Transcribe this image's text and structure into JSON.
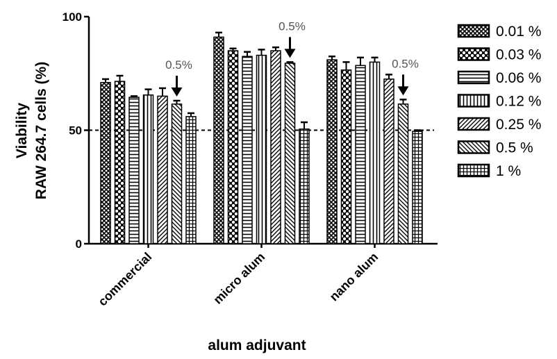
{
  "chart_data": {
    "type": "bar",
    "ylabel": [
      "Viability",
      "RAW 264.7 cells (%)"
    ],
    "xlabel": "alum adjuvant",
    "ylim": [
      0,
      100
    ],
    "yticks": [
      "0",
      "50",
      "100"
    ],
    "categories": [
      "commercial",
      "micro alum",
      "nano alum"
    ],
    "series": [
      {
        "name": "0.01 %",
        "pattern": "crosshatch",
        "values": [
          71,
          91,
          81
        ],
        "errors": [
          1.5,
          2.0,
          1.5
        ]
      },
      {
        "name": "0.03 %",
        "pattern": "checker",
        "values": [
          71.5,
          85,
          76.5
        ],
        "errors": [
          2.5,
          1.0,
          3.5
        ]
      },
      {
        "name": "0.06 %",
        "pattern": "hlines",
        "values": [
          64.5,
          82.5,
          78.5
        ],
        "errors": [
          0.5,
          2.0,
          3.5
        ]
      },
      {
        "name": "0.12 %",
        "pattern": "vlines",
        "values": [
          65.5,
          83,
          80
        ],
        "errors": [
          2.5,
          2.5,
          2.0
        ]
      },
      {
        "name": "0.25 %",
        "pattern": "diag-right",
        "values": [
          65,
          85,
          72.5
        ],
        "errors": [
          3.5,
          1.5,
          2.0
        ]
      },
      {
        "name": "0.5 %",
        "pattern": "diag-left",
        "values": [
          61.5,
          79.5,
          61.5
        ],
        "errors": [
          1.5,
          0.5,
          2.0
        ]
      },
      {
        "name": "1 %",
        "pattern": "grid",
        "values": [
          56,
          50.5,
          49.5
        ],
        "errors": [
          1.5,
          3.0,
          0.5
        ]
      }
    ],
    "reference_line": 50,
    "annotations": [
      {
        "text": "0.5%",
        "category": "commercial",
        "series": "0.5 %"
      },
      {
        "text": "0.5%",
        "category": "micro alum",
        "series": "0.5 %"
      },
      {
        "text": "0.5%",
        "category": "nano alum",
        "series": "0.5 %"
      }
    ],
    "legend_position": "right",
    "grid": false
  }
}
